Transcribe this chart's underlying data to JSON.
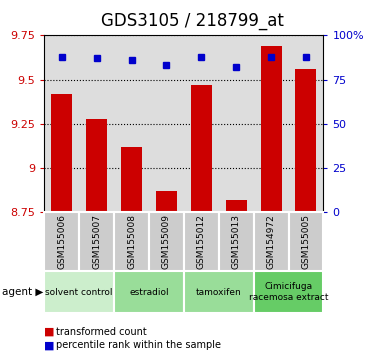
{
  "title": "GDS3105 / 218799_at",
  "samples": [
    "GSM155006",
    "GSM155007",
    "GSM155008",
    "GSM155009",
    "GSM155012",
    "GSM155013",
    "GSM154972",
    "GSM155005"
  ],
  "red_values": [
    9.42,
    9.28,
    9.12,
    8.87,
    9.47,
    8.82,
    9.69,
    9.56
  ],
  "blue_values": [
    88,
    87,
    86,
    83,
    88,
    82,
    88,
    88
  ],
  "agents": [
    {
      "label": "solvent control",
      "start": 0,
      "end": 2,
      "color": "#cceecc"
    },
    {
      "label": "estradiol",
      "start": 2,
      "end": 4,
      "color": "#99dd99"
    },
    {
      "label": "tamoxifen",
      "start": 4,
      "end": 6,
      "color": "#99dd99"
    },
    {
      "label": "Cimicifuga\nracemosa extract",
      "start": 6,
      "end": 8,
      "color": "#66cc66"
    }
  ],
  "ylim_left": [
    8.75,
    9.75
  ],
  "yticks_left": [
    8.75,
    9.0,
    9.25,
    9.5,
    9.75
  ],
  "ylim_right": [
    0,
    100
  ],
  "yticks_right": [
    0,
    25,
    50,
    75,
    100
  ],
  "bar_color": "#cc0000",
  "dot_color": "#0000cc",
  "bar_width": 0.6,
  "bar_bottom": 8.75,
  "title_fontsize": 12,
  "tick_color_left": "#cc0000",
  "tick_color_right": "#0000cc",
  "legend_red": "transformed count",
  "legend_blue": "percentile rank within the sample",
  "plot_bg_color": "#dddddd",
  "sample_box_color": "#cccccc",
  "sample_box_edge": "#aaaaaa"
}
